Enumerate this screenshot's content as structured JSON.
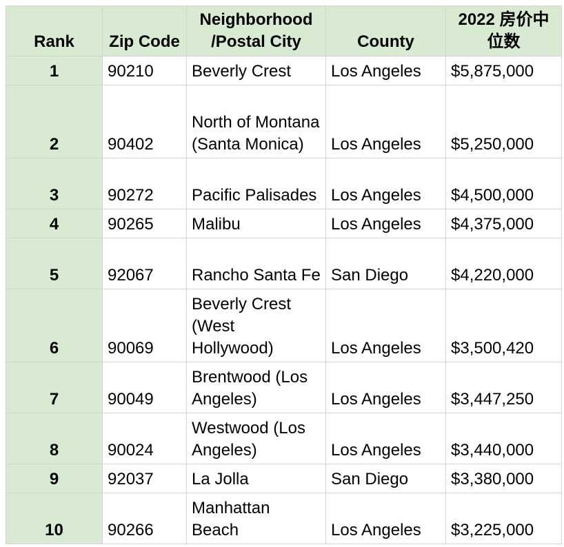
{
  "headers": {
    "rank": "Rank",
    "zip": "Zip Code",
    "neighborhood": "Neighborhood /Postal City",
    "county": "County",
    "price": "2022 房价中位数"
  },
  "rows": [
    {
      "rank": "1",
      "zip": "90210",
      "neighborhood": "Beverly Crest",
      "county": "Los Angeles",
      "price": "$5,875,000"
    },
    {
      "rank": "2",
      "zip": "90402",
      "neighborhood": "North of Montana (Santa Monica)",
      "county": "Los Angeles",
      "price": "$5,250,000"
    },
    {
      "rank": "3",
      "zip": "90272",
      "neighborhood": "Pacific Palisades",
      "county": "Los Angeles",
      "price": "$4,500,000"
    },
    {
      "rank": "4",
      "zip": "90265",
      "neighborhood": "Malibu",
      "county": "Los Angeles",
      "price": "$4,375,000"
    },
    {
      "rank": "5",
      "zip": "92067",
      "neighborhood": "Rancho Santa Fe",
      "county": "San Diego",
      "price": "$4,220,000"
    },
    {
      "rank": "6",
      "zip": "90069",
      "neighborhood": "Beverly Crest (West Hollywood)",
      "county": "Los Angeles",
      "price": "$3,500,420"
    },
    {
      "rank": "7",
      "zip": "90049",
      "neighborhood": "Brentwood (Los Angeles)",
      "county": "Los Angeles",
      "price": "$3,447,250"
    },
    {
      "rank": "8",
      "zip": "90024",
      "neighborhood": "Westwood (Los Angeles)",
      "county": "Los Angeles",
      "price": "$3,440,000"
    },
    {
      "rank": "9",
      "zip": "92037",
      "neighborhood": "La Jolla",
      "county": "San Diego",
      "price": "$3,380,000"
    },
    {
      "rank": "10",
      "zip": "90266",
      "neighborhood": "Manhattan Beach",
      "county": "Los Angeles",
      "price": "$3,225,000"
    }
  ],
  "colors": {
    "header_fill": "#d9ead3",
    "grid_line": "#d4d4d4"
  }
}
